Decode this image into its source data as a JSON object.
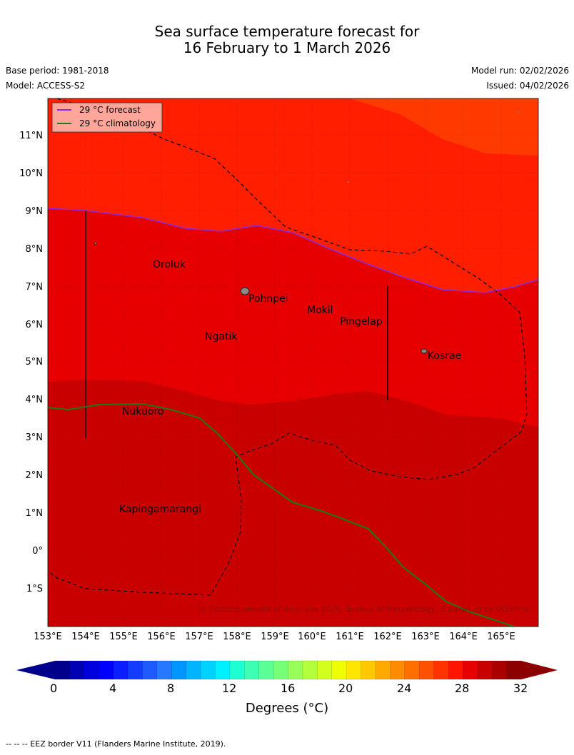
{
  "title": {
    "line1": "Sea surface temperature forecast for",
    "line2": "16 February to 1 March 2026"
  },
  "meta": {
    "base_period": "Base period: 1981-2018",
    "model": "Model: ACCESS-S2",
    "model_run": "Model run: 02/02/2026",
    "issued": "Issued: 04/02/2026"
  },
  "legend": {
    "forecast": "29 °C  forecast",
    "climatology": "29 °C  climatology",
    "forecast_color": "#8a2be2",
    "climatology_color": "#1a7a1a"
  },
  "axes": {
    "lat_labels": [
      "11°N",
      "10°N",
      "9°N",
      "8°N",
      "7°N",
      "6°N",
      "5°N",
      "4°N",
      "3°N",
      "2°N",
      "1°N",
      "0°",
      "1°S"
    ],
    "lon_labels": [
      "153°E",
      "154°E",
      "155°E",
      "156°E",
      "157°E",
      "158°E",
      "159°E",
      "160°E",
      "161°E",
      "162°E",
      "163°E",
      "164°E",
      "165°E"
    ]
  },
  "places": [
    {
      "name": "Oroluk"
    },
    {
      "name": "Pohnpei"
    },
    {
      "name": "Mokil"
    },
    {
      "name": "Pingelap"
    },
    {
      "name": "Ngatik"
    },
    {
      "name": "Kosrae"
    },
    {
      "name": "Nukuoro"
    },
    {
      "name": "Kapingamarangi"
    }
  ],
  "copyright": "© Commonwealth of Australia 2026, Bureau of Meteorology, Supported by COSPPac",
  "colorbar": {
    "labels": [
      "0",
      "4",
      "8",
      "12",
      "16",
      "20",
      "24",
      "28",
      "32"
    ],
    "unit": "Degrees (°C)",
    "colors": [
      "#00008c",
      "#0000b4",
      "#0000dc",
      "#0000ff",
      "#0a1eff",
      "#143cff",
      "#1e5aff",
      "#2878ff",
      "#0096ff",
      "#00b4ff",
      "#00d2ff",
      "#00f0ff",
      "#1effd2",
      "#3cffb4",
      "#5aff96",
      "#78ff78",
      "#96ff5a",
      "#b4ff3c",
      "#d2ff1e",
      "#f0ff00",
      "#ffe600",
      "#ffc800",
      "#ffaa00",
      "#ff8c00",
      "#ff6e00",
      "#ff5000",
      "#ff3200",
      "#ff1400",
      "#e60000",
      "#c80000",
      "#aa0000",
      "#8c0000"
    ]
  },
  "footnote": "--  --  -- EEZ border V11 (Flanders Marine Institute, 2019)."
}
